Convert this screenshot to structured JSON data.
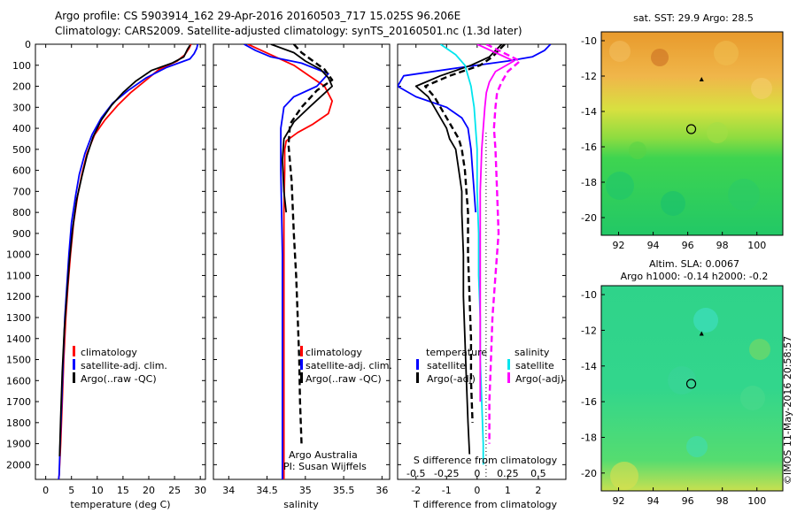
{
  "header": {
    "line1": "Argo profile: CS 5903914_162 29-Apr-2016 20160503_717 15.025S 96.206E",
    "line2": "Climatology: CARS2009. Satellite-adjusted climatology: synTS_20160501.nc (1.3d later)"
  },
  "chart_data": [
    {
      "id": "temperature",
      "type": "line",
      "xlabel": "temperature (deg C)",
      "ylabel": "",
      "xlim": [
        -2,
        31
      ],
      "ylim": [
        2070,
        0
      ],
      "xticks": [
        0,
        5,
        10,
        15,
        20,
        25,
        30
      ],
      "yticks": [
        0,
        100,
        200,
        300,
        400,
        500,
        600,
        700,
        800,
        900,
        1000,
        1100,
        1200,
        1300,
        1400,
        1500,
        1600,
        1700,
        1800,
        1900,
        2000
      ],
      "legend": [
        "climatology",
        "satellite-adj. clim.",
        "Argo(..raw -QC)"
      ],
      "series": [
        {
          "name": "climatology",
          "color": "#ff0000",
          "style": "solid",
          "x": [
            28.2,
            27.8,
            27.0,
            25.5,
            22.0,
            19.5,
            16.5,
            14.0,
            11.5,
            9.5,
            8.0,
            7.0,
            6.2,
            5.4,
            4.8,
            4.3,
            3.9,
            3.5,
            3.2,
            2.9,
            2.6,
            2.5
          ],
          "y": [
            0,
            20,
            50,
            80,
            120,
            170,
            230,
            290,
            360,
            430,
            520,
            620,
            720,
            850,
            1000,
            1150,
            1300,
            1500,
            1700,
            1900,
            2050,
            2070
          ]
        },
        {
          "name": "satellite-adj. clim.",
          "color": "#0000ff",
          "style": "solid",
          "x": [
            29.5,
            29.3,
            28.8,
            28.0,
            23.5,
            19.5,
            16.0,
            13.0,
            10.8,
            9.0,
            7.6,
            6.5,
            5.8,
            5.0,
            4.5,
            4.1,
            3.7,
            3.4,
            3.1,
            2.8,
            2.6,
            2.5
          ],
          "y": [
            0,
            20,
            45,
            70,
            110,
            160,
            220,
            280,
            350,
            430,
            520,
            620,
            720,
            850,
            1000,
            1150,
            1300,
            1500,
            1700,
            1900,
            2050,
            2070
          ]
        },
        {
          "name": "Argo(..raw -QC)",
          "color": "#000000",
          "style": "solid",
          "x": [
            28.0,
            27.5,
            26.8,
            24.5,
            20.5,
            17.5,
            15.0,
            12.8,
            10.8,
            9.2,
            8.0,
            7.0,
            6.0,
            5.2,
            4.6,
            4.1,
            3.6,
            3.2,
            2.9,
            2.7
          ],
          "y": [
            5,
            25,
            60,
            90,
            125,
            175,
            230,
            290,
            360,
            440,
            530,
            630,
            740,
            880,
            1030,
            1190,
            1360,
            1560,
            1780,
            1960
          ]
        }
      ]
    },
    {
      "id": "salinity",
      "type": "line",
      "xlabel": "salinity",
      "ylabel": "",
      "xlim": [
        33.8,
        36.1
      ],
      "ylim": [
        2070,
        0
      ],
      "xticks": [
        34,
        34.5,
        35,
        35.5,
        36
      ],
      "legend": [
        "climatology",
        "satellite-adj. clim.",
        "Argo(..raw -QC)"
      ],
      "annotations": [
        "Argo Australia",
        "PI: Susan Wijffels"
      ],
      "series": [
        {
          "name": "climatology",
          "color": "#ff0000",
          "style": "solid",
          "x": [
            34.25,
            34.55,
            34.85,
            35.05,
            35.25,
            35.35,
            35.3,
            35.1,
            34.9,
            34.75,
            34.73,
            34.73,
            34.72,
            34.72,
            34.72,
            34.72,
            34.72,
            34.72
          ],
          "y": [
            0,
            50,
            100,
            150,
            200,
            270,
            330,
            380,
            420,
            460,
            500,
            600,
            800,
            1000,
            1300,
            1600,
            1900,
            2070
          ]
        },
        {
          "name": "satellite-adj. clim.",
          "color": "#0000ff",
          "style": "solid",
          "x": [
            34.2,
            34.35,
            34.55,
            34.95,
            35.3,
            35.15,
            34.85,
            34.72,
            34.68,
            34.68,
            34.68,
            34.69,
            34.7,
            34.7,
            34.7,
            34.7,
            34.7
          ],
          "y": [
            0,
            30,
            60,
            90,
            140,
            200,
            250,
            300,
            400,
            500,
            600,
            800,
            1000,
            1300,
            1600,
            1900,
            2070
          ]
        },
        {
          "name": "Argo(..raw -QC)",
          "color": "#000000",
          "style": "solid",
          "x": [
            34.55,
            34.85,
            35.0,
            35.2,
            35.3,
            35.35,
            35.2,
            35.05,
            34.85,
            34.72,
            34.7,
            34.72,
            34.75
          ],
          "y": [
            0,
            40,
            80,
            120,
            160,
            200,
            250,
            300,
            370,
            450,
            550,
            700,
            800
          ]
        },
        {
          "name": "Argo(..raw -QC)",
          "color": "#000000",
          "style": "dashed",
          "x": [
            34.85,
            34.95,
            35.1,
            35.25,
            35.35,
            35.15,
            34.95,
            34.8,
            34.78,
            34.82,
            34.85,
            34.88,
            34.9,
            34.92,
            34.93,
            34.95
          ],
          "y": [
            0,
            40,
            80,
            120,
            170,
            220,
            300,
            380,
            480,
            650,
            900,
            1100,
            1300,
            1500,
            1700,
            1900
          ]
        }
      ]
    },
    {
      "id": "difference",
      "type": "line",
      "xlabel": "T difference from climatology",
      "xlabel_top": "S difference from climatology",
      "xlim": [
        -2.6,
        2.9
      ],
      "ylim": [
        2070,
        0
      ],
      "xticks": [
        -2,
        -1,
        0,
        1,
        2
      ],
      "xticklabels_top": [
        "-0.5",
        "-0.25",
        "0",
        "0.25",
        "0.5"
      ],
      "legend_titles": [
        "temperature",
        "salinity"
      ],
      "legend": [
        "satellite",
        "Argo(-adj)",
        "satellite",
        "Argo(-adj)"
      ],
      "series": [
        {
          "name": "satellite",
          "color": "#0000ff",
          "style": "solid",
          "x": [
            2.4,
            2.2,
            1.8,
            1.0,
            -0.5,
            -2.4,
            -2.6,
            -2.0,
            -1.0,
            -0.5,
            -0.3,
            -0.2,
            -0.15,
            -0.1,
            -0.05
          ],
          "y": [
            0,
            30,
            60,
            80,
            110,
            150,
            200,
            250,
            300,
            350,
            400,
            500,
            600,
            700,
            800
          ]
        },
        {
          "name": "Argo(-adj)",
          "color": "#000000",
          "style": "solid",
          "x": [
            0.8,
            0.4,
            -0.2,
            -1.2,
            -2.0,
            -1.6,
            -1.4,
            -1.2,
            -1.0,
            -0.9,
            -0.7,
            -0.6,
            -0.5,
            -0.5,
            -0.45,
            -0.45,
            -0.4,
            -0.35,
            -0.3,
            -0.25
          ],
          "y": [
            0,
            60,
            100,
            150,
            200,
            250,
            300,
            350,
            400,
            450,
            500,
            600,
            700,
            800,
            1000,
            1200,
            1400,
            1600,
            1800,
            1950
          ]
        },
        {
          "name": "Argo(-adj)",
          "color": "#000000",
          "style": "dashed",
          "x": [
            0.9,
            0.5,
            0.1,
            -0.9,
            -1.7,
            -1.4,
            -1.2,
            -1.0,
            -0.8,
            -0.6,
            -0.5,
            -0.4,
            -0.35,
            -0.3,
            -0.3,
            -0.25,
            -0.2,
            -0.2,
            -0.15
          ],
          "y": [
            0,
            60,
            100,
            150,
            200,
            250,
            300,
            350,
            400,
            450,
            500,
            600,
            700,
            800,
            1000,
            1200,
            1400,
            1600,
            1800
          ]
        },
        {
          "name": "satellite",
          "color": "#00e5ee",
          "style": "solid",
          "x": [
            -1.2,
            -0.7,
            -0.4,
            -0.3,
            -0.2,
            -0.15,
            -0.1,
            -0.05,
            0.0,
            0.0,
            0.05,
            0.05,
            0.1,
            0.1,
            0.15,
            0.2,
            0.2
          ],
          "y": [
            0,
            50,
            100,
            150,
            200,
            250,
            300,
            400,
            500,
            700,
            900,
            1100,
            1300,
            1500,
            1700,
            1900,
            2000
          ]
        },
        {
          "name": "Argo(-adj)",
          "color": "#ff00ff",
          "style": "solid",
          "x": [
            0.0,
            1.2,
            0.6,
            0.4,
            0.3,
            0.25,
            0.2,
            0.15,
            0.1,
            0.1,
            0.1,
            0.1,
            0.1,
            0.1
          ],
          "y": [
            0,
            80,
            130,
            180,
            230,
            300,
            400,
            500,
            700,
            900,
            1100,
            1300,
            1500,
            1700
          ]
        },
        {
          "name": "Argo(-adj)",
          "color": "#ff00ff",
          "style": "dashed",
          "x": [
            0.3,
            1.4,
            1.0,
            0.8,
            0.65,
            0.6,
            0.55,
            0.6,
            0.65,
            0.7,
            0.6,
            0.5,
            0.45,
            0.4,
            0.4
          ],
          "y": [
            0,
            80,
            130,
            180,
            230,
            300,
            400,
            500,
            700,
            900,
            1100,
            1300,
            1500,
            1700,
            1900
          ]
        }
      ]
    },
    {
      "id": "map_sst",
      "type": "heatmap",
      "title": "sat. SST: 29.9 Argo: 28.5",
      "xlim": [
        91,
        101.5
      ],
      "ylim": [
        -21,
        -9.5
      ],
      "xticks": [
        92,
        94,
        96,
        98,
        100
      ],
      "yticks": [
        -10,
        -12,
        -14,
        -16,
        -18,
        -20
      ],
      "marker_circle": [
        96.2,
        -15.0
      ],
      "marker_triangle": [
        96.8,
        -12.2
      ]
    },
    {
      "id": "map_sla",
      "type": "heatmap",
      "title": "Altim. SLA: 0.0067",
      "subtitle": "Argo h1000: -0.14 h2000: -0.2",
      "xlim": [
        91,
        101.5
      ],
      "ylim": [
        -21,
        -9.5
      ],
      "xticks": [
        92,
        94,
        96,
        98,
        100
      ],
      "yticks": [
        -10,
        -12,
        -14,
        -16,
        -18,
        -20
      ],
      "marker_circle": [
        96.2,
        -15.0
      ],
      "marker_triangle": [
        96.8,
        -12.2
      ]
    }
  ],
  "stamp": "©IMOS 11-May-2016 20:58:57"
}
